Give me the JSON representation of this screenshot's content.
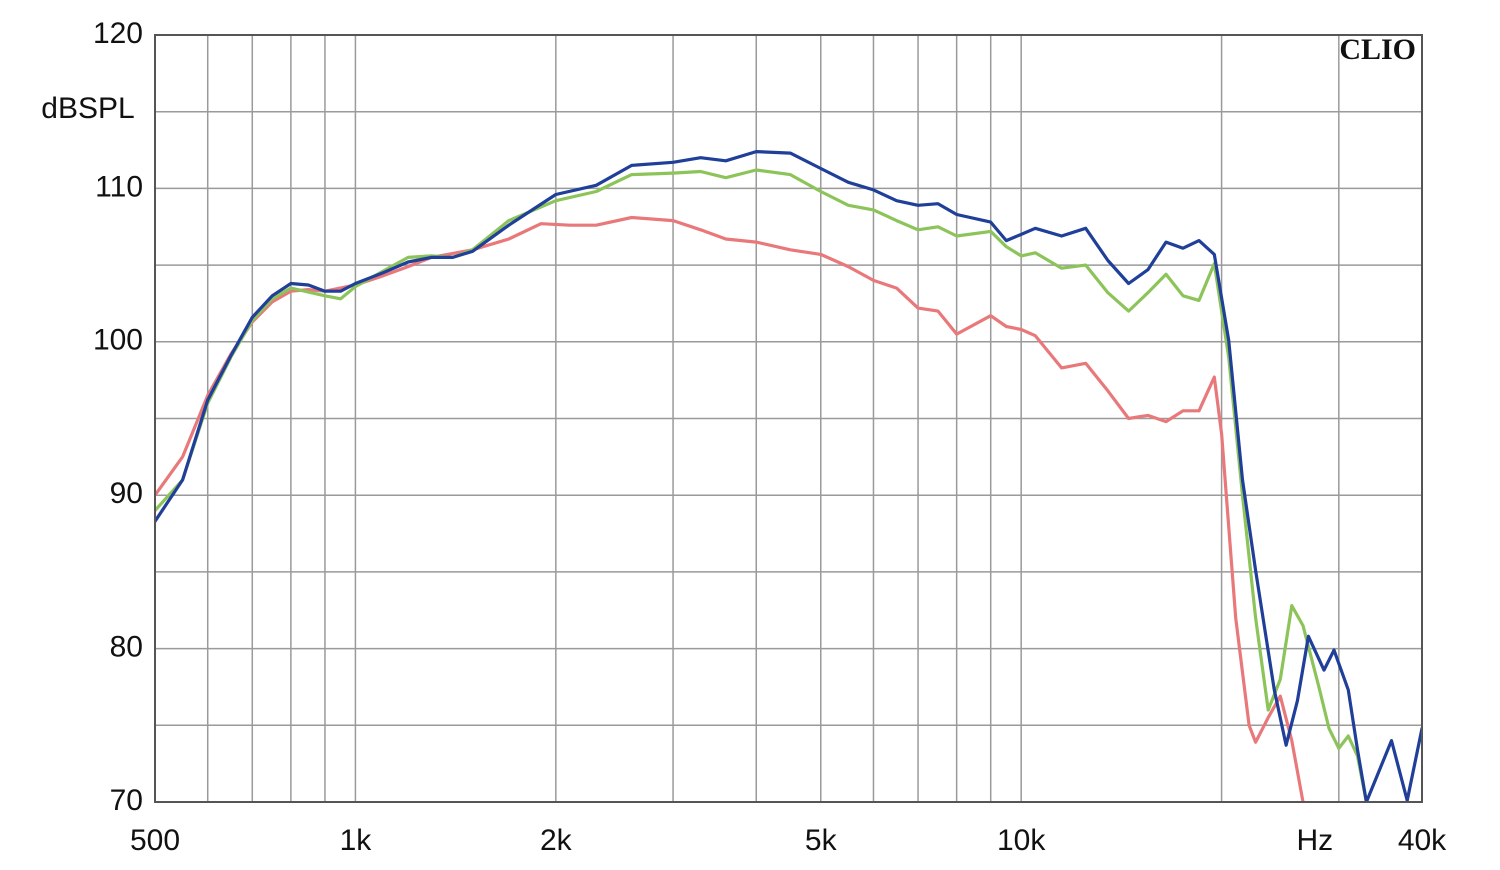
{
  "chart_data": {
    "type": "line",
    "y_label": "dBSPL",
    "watermark": "CLIO",
    "log_x": true,
    "grid": true,
    "xlim": [
      500,
      40000
    ],
    "ylim": [
      70,
      120
    ],
    "yticks": [
      70,
      80,
      90,
      100,
      110,
      120
    ],
    "y_minor_ticks": [
      75,
      85,
      95,
      105,
      115
    ],
    "xticks": [
      500,
      {
        "value": 1000,
        "label": "1k"
      },
      {
        "value": 2000,
        "label": "2k"
      },
      {
        "value": 5000,
        "label": "5k"
      },
      {
        "value": 10000,
        "label": "10k"
      },
      {
        "value": 30000,
        "label": "Hz"
      },
      {
        "value": 40000,
        "label": "40k"
      }
    ],
    "x_minor_ticks": [
      600,
      700,
      800,
      900,
      3000,
      4000,
      6000,
      7000,
      8000,
      9000,
      20000
    ],
    "series": [
      {
        "color": "#e9787a",
        "x": [
          500,
          550,
          600,
          650,
          700,
          750,
          800,
          850,
          900,
          1000,
          1100,
          1200,
          1300,
          1500,
          1700,
          1900,
          2100,
          2300,
          2600,
          3000,
          3300,
          3600,
          4000,
          4500,
          5000,
          5500,
          6000,
          6500,
          7000,
          7500,
          8000,
          9000,
          9500,
          10000,
          10500,
          11500,
          12500,
          13500,
          14500,
          15500,
          16500,
          17500,
          18500,
          19500,
          20000,
          21000,
          22000,
          22500,
          23500,
          24500,
          25500,
          26500
        ],
        "values": [
          90,
          92.5,
          96.5,
          99.2,
          101.3,
          102.6,
          103.3,
          103.4,
          103.3,
          103.7,
          104.3,
          104.9,
          105.5,
          106.0,
          106.7,
          107.7,
          107.6,
          107.6,
          108.1,
          107.9,
          107.3,
          106.7,
          106.5,
          106.0,
          105.7,
          104.9,
          104.0,
          103.5,
          102.2,
          102.0,
          100.5,
          101.7,
          101.0,
          100.8,
          100.4,
          98.3,
          98.6,
          96.8,
          95.0,
          95.2,
          94.8,
          95.5,
          95.5,
          97.7,
          94,
          82,
          75,
          73.9,
          75.5,
          76.9,
          74,
          70
        ]
      },
      {
        "color": "#8cc45a",
        "x": [
          500,
          550,
          600,
          650,
          700,
          750,
          800,
          900,
          950,
          1000,
          1100,
          1200,
          1300,
          1400,
          1500,
          1700,
          2000,
          2300,
          2600,
          3000,
          3300,
          3600,
          4000,
          4500,
          5000,
          5500,
          6000,
          6500,
          7000,
          7500,
          8000,
          9000,
          9500,
          10000,
          10500,
          11500,
          12500,
          13500,
          14500,
          15500,
          16500,
          17500,
          18500,
          19500,
          20500,
          21500,
          22500,
          23500,
          24500,
          25500,
          26500,
          28000,
          29000,
          30000,
          31000,
          32000,
          33000
        ],
        "values": [
          89.0,
          91,
          96,
          99,
          101.4,
          102.8,
          103.5,
          103.0,
          102.8,
          103.6,
          104.6,
          105.5,
          105.6,
          105.5,
          106.0,
          107.9,
          109.2,
          109.8,
          110.9,
          111.0,
          111.1,
          110.7,
          111.2,
          110.9,
          109.8,
          108.9,
          108.6,
          107.9,
          107.3,
          107.5,
          106.9,
          107.2,
          106.2,
          105.6,
          105.8,
          104.8,
          105.0,
          103.2,
          102.0,
          103.2,
          104.4,
          103.0,
          102.7,
          105.1,
          99,
          90,
          82,
          76.0,
          78,
          82.8,
          81.5,
          77.5,
          74.8,
          73.5,
          74.3,
          73,
          70
        ]
      },
      {
        "color": "#1f3f99",
        "x": [
          500,
          550,
          600,
          650,
          700,
          750,
          800,
          850,
          900,
          950,
          1000,
          1100,
          1200,
          1300,
          1400,
          1500,
          1700,
          2000,
          2300,
          2600,
          3000,
          3300,
          3600,
          4000,
          4500,
          5000,
          5500,
          6000,
          6500,
          7000,
          7500,
          8000,
          9000,
          9500,
          10000,
          10500,
          11500,
          12500,
          13500,
          14500,
          15500,
          16500,
          17500,
          18500,
          19500,
          20500,
          21500,
          22500,
          24000,
          25000,
          26000,
          27000,
          28500,
          29500,
          31000,
          32000,
          33000,
          36000,
          38000,
          40000
        ],
        "values": [
          88.3,
          91,
          96.2,
          99.1,
          101.6,
          103.0,
          103.8,
          103.7,
          103.3,
          103.3,
          103.8,
          104.5,
          105.2,
          105.5,
          105.5,
          105.9,
          107.6,
          109.6,
          110.2,
          111.5,
          111.7,
          112.0,
          111.8,
          112.4,
          112.3,
          111.3,
          110.4,
          109.9,
          109.2,
          108.9,
          109.0,
          108.3,
          107.8,
          106.6,
          107.0,
          107.4,
          106.9,
          107.4,
          105.3,
          103.8,
          104.7,
          106.5,
          106.1,
          106.6,
          105.7,
          100.1,
          91.0,
          85.1,
          77.3,
          73.7,
          76.6,
          80.8,
          78.6,
          79.9,
          77.3,
          73.4,
          70,
          74,
          70.1,
          74.8
        ]
      }
    ]
  }
}
